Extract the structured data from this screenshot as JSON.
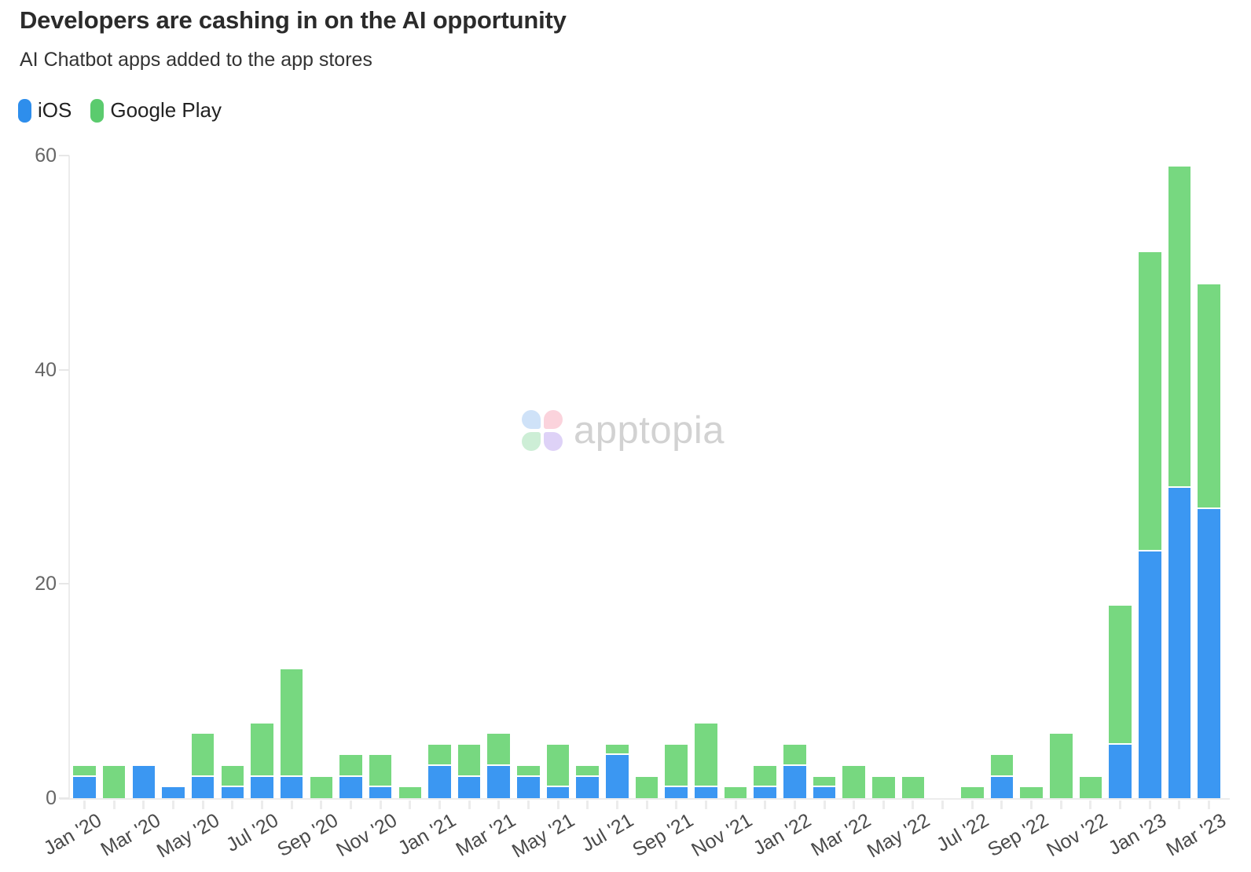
{
  "header": {
    "title": "Developers are cashing in on the AI opportunity",
    "subtitle": "AI Chatbot apps added to the app stores"
  },
  "legend": {
    "items": [
      {
        "label": "iOS",
        "color": "#2e8eec"
      },
      {
        "label": "Google Play",
        "color": "#5bcb6e"
      }
    ]
  },
  "watermark": {
    "text": "apptopia",
    "text_color": "#d2d2d2",
    "petal_colors": {
      "top_left_blue": "#cfe2f8",
      "top_right_pink": "#fbd3dc",
      "bottom_left_green": "#cdeed6",
      "bottom_right_purple": "#ded2f7"
    }
  },
  "chart_data": {
    "type": "bar",
    "stacked": true,
    "title": "Developers are cashing in on the AI opportunity",
    "subtitle": "AI Chatbot apps added to the app stores",
    "xlabel": "",
    "ylabel": "",
    "ylim": [
      0,
      60
    ],
    "yticks": [
      0,
      20,
      40,
      60
    ],
    "grid": false,
    "legend_position": "top-left",
    "categories": [
      "Jan '20",
      "Feb '20",
      "Mar '20",
      "Apr '20",
      "May '20",
      "Jun '20",
      "Jul '20",
      "Aug '20",
      "Sep '20",
      "Oct '20",
      "Nov '20",
      "Dec '20",
      "Jan '21",
      "Feb '21",
      "Mar '21",
      "Apr '21",
      "May '21",
      "Jun '21",
      "Jul '21",
      "Aug '21",
      "Sep '21",
      "Oct '21",
      "Nov '21",
      "Dec '21",
      "Jan '22",
      "Feb '22",
      "Mar '22",
      "Apr '22",
      "May '22",
      "Jun '22",
      "Jul '22",
      "Aug '22",
      "Sep '22",
      "Oct '22",
      "Nov '22",
      "Dec '22",
      "Jan '23",
      "Feb '23",
      "Mar '23"
    ],
    "x_tick_labels_shown": [
      "Jan '20",
      "Mar '20",
      "May '20",
      "Jul '20",
      "Sep '20",
      "Nov '20",
      "Jan '21",
      "Mar '21",
      "May '21",
      "Jul '21",
      "Sep '21",
      "Nov '21",
      "Jan '22",
      "Mar '22",
      "May '22",
      "Jul '22",
      "Sep '22",
      "Nov '22",
      "Jan '23",
      "Mar '23"
    ],
    "series": [
      {
        "name": "iOS",
        "color": "#3b97f2",
        "values": [
          2,
          0,
          3,
          1,
          2,
          1,
          2,
          2,
          0,
          2,
          1,
          0,
          3,
          2,
          3,
          2,
          1,
          2,
          4,
          0,
          1,
          1,
          0,
          1,
          3,
          1,
          0,
          0,
          0,
          0,
          0,
          2,
          0,
          0,
          0,
          5,
          23,
          29,
          27
        ]
      },
      {
        "name": "Google Play",
        "color": "#77d880",
        "values": [
          1,
          3,
          0,
          0,
          4,
          2,
          5,
          10,
          2,
          2,
          3,
          1,
          2,
          3,
          3,
          1,
          4,
          1,
          1,
          2,
          4,
          6,
          1,
          2,
          2,
          1,
          3,
          2,
          2,
          0,
          1,
          2,
          1,
          6,
          2,
          13,
          28,
          30,
          21
        ]
      }
    ],
    "totals": [
      3,
      3,
      3,
      1,
      6,
      3,
      7,
      12,
      2,
      4,
      4,
      1,
      5,
      5,
      6,
      3,
      5,
      3,
      5,
      2,
      5,
      7,
      1,
      3,
      5,
      2,
      3,
      2,
      2,
      0,
      1,
      4,
      1,
      6,
      2,
      18,
      51,
      59,
      48
    ]
  }
}
